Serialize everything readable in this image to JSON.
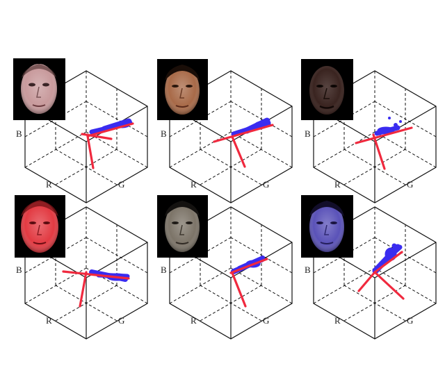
{
  "figure": {
    "axis_labels": {
      "r": "R",
      "g": "G",
      "b": "B"
    },
    "colors": {
      "cube_line": "#111111",
      "point_cloud": "#3a2cf0",
      "principal_axes": "#f0293e"
    },
    "panels": [
      {
        "face_icon": "face-photo-1",
        "face_tint": "#c89a9c"
      },
      {
        "face_icon": "face-photo-2",
        "face_tint": "#a86a48"
      },
      {
        "face_icon": "face-photo-3",
        "face_tint": "#3a2420"
      },
      {
        "face_icon": "face-photo-4",
        "face_tint": "#e23a42"
      },
      {
        "face_icon": "face-photo-5",
        "face_tint": "#7c7468"
      },
      {
        "face_icon": "face-photo-6",
        "face_tint": "#5a52b8"
      }
    ]
  }
}
